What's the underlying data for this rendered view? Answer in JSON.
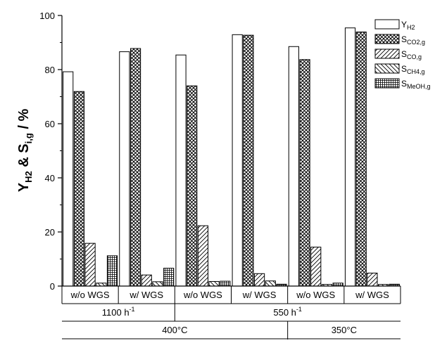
{
  "chart_data": {
    "type": "bar",
    "ylabel": {
      "main1": "Y",
      "sub1": "H2",
      "main2": " & S",
      "sub2": "i,g",
      "main3": " / %"
    },
    "ylim": [
      0,
      100
    ],
    "yticks": [
      "0",
      "20",
      "40",
      "60",
      "80",
      "100"
    ],
    "grid": false,
    "legend_position": "top-right",
    "categories": [
      "w/o WGS",
      "w/ WGS",
      "w/o WGS",
      "w/ WGS",
      "w/o WGS",
      "w/ WGS"
    ],
    "group_levels": [
      [
        {
          "label": "1100 h",
          "sup": "-1",
          "span": [
            0,
            2
          ]
        },
        {
          "label": "550 h",
          "sup": "-1",
          "span": [
            2,
            6
          ]
        }
      ],
      [
        {
          "label": "400°C",
          "sup": "",
          "span": [
            0,
            4
          ]
        },
        {
          "label": "350°C",
          "sup": "",
          "span": [
            4,
            6
          ]
        }
      ]
    ],
    "series": [
      {
        "key": "yh2",
        "legend_main": "Y",
        "legend_sub": "H2",
        "pattern": "none",
        "values": [
          79.2,
          86.6,
          85.4,
          92.9,
          88.5,
          95.4
        ]
      },
      {
        "key": "sco2",
        "legend_main": "S",
        "legend_sub": "CO2,g",
        "pattern": "crosshatch",
        "values": [
          71.9,
          87.8,
          74.0,
          92.7,
          83.7,
          93.9
        ]
      },
      {
        "key": "sco",
        "legend_main": "S",
        "legend_sub": "CO,g",
        "pattern": "diag-right",
        "values": [
          15.8,
          4.1,
          22.3,
          4.6,
          14.4,
          4.8
        ]
      },
      {
        "key": "sch4",
        "legend_main": "S",
        "legend_sub": "CH4,g",
        "pattern": "diag-left",
        "values": [
          1.1,
          1.6,
          1.7,
          1.9,
          0.6,
          0.6
        ]
      },
      {
        "key": "smeoh",
        "legend_main": "S",
        "legend_sub": "MeOH,g",
        "pattern": "grid",
        "values": [
          11.2,
          6.6,
          1.8,
          0.7,
          1.1,
          0.7
        ]
      }
    ]
  }
}
